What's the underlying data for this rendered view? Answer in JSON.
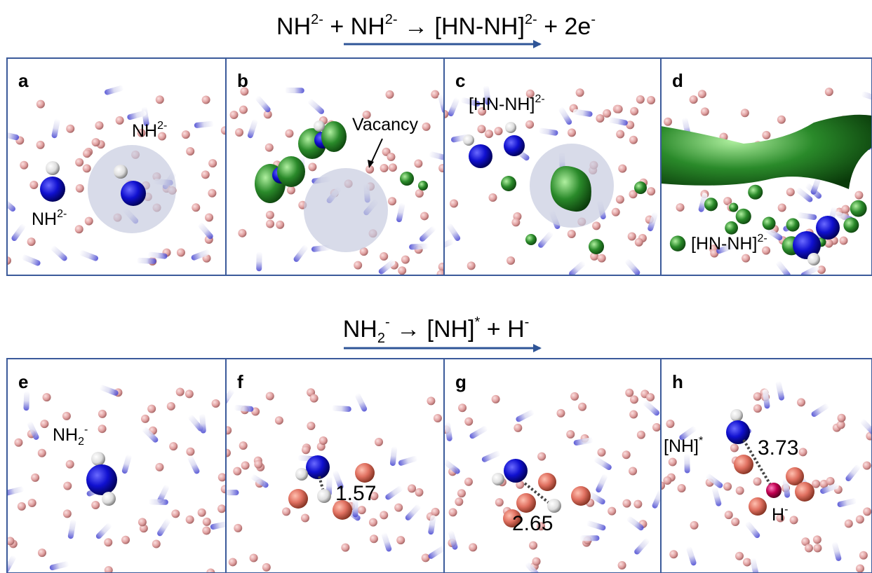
{
  "equations": [
    {
      "terms": [
        {
          "base": "NH",
          "sup": "2-"
        },
        {
          "base": "+ NH",
          "sup": "2-"
        },
        {
          "base": "→ [HN-NH]",
          "sup": "2-"
        },
        {
          "base": "+ 2e",
          "sup": "-"
        }
      ]
    },
    {
      "terms": [
        {
          "base": "NH",
          "sub": "2",
          "sup": "-"
        },
        {
          "base": "→ [NH]",
          "sup": "*"
        },
        {
          "base": "+ H",
          "sup": "-"
        }
      ]
    }
  ],
  "panels": [
    {
      "label": "a",
      "annotations": [
        {
          "base": "NH",
          "sup": "2-"
        },
        {
          "base": "NH",
          "sup": "2-"
        }
      ]
    },
    {
      "label": "b",
      "annotations": [
        {
          "text": "Vacancy"
        }
      ]
    },
    {
      "label": "c",
      "annotations": [
        {
          "base": "[HN-NH]",
          "sup": "2-"
        }
      ]
    },
    {
      "label": "d",
      "annotations": [
        {
          "base": "[HN-NH]",
          "sup": "2-"
        }
      ]
    },
    {
      "label": "e",
      "annotations": [
        {
          "base": "NH",
          "sub": "2",
          "sup": "-"
        }
      ]
    },
    {
      "label": "f",
      "distance": 1.57
    },
    {
      "label": "g",
      "distance": 2.65
    },
    {
      "label": "h",
      "annotations": [
        {
          "base": "[NH]",
          "sup": "*"
        },
        {
          "base": "H",
          "sup": "-"
        }
      ],
      "distance": 3.73
    }
  ]
}
